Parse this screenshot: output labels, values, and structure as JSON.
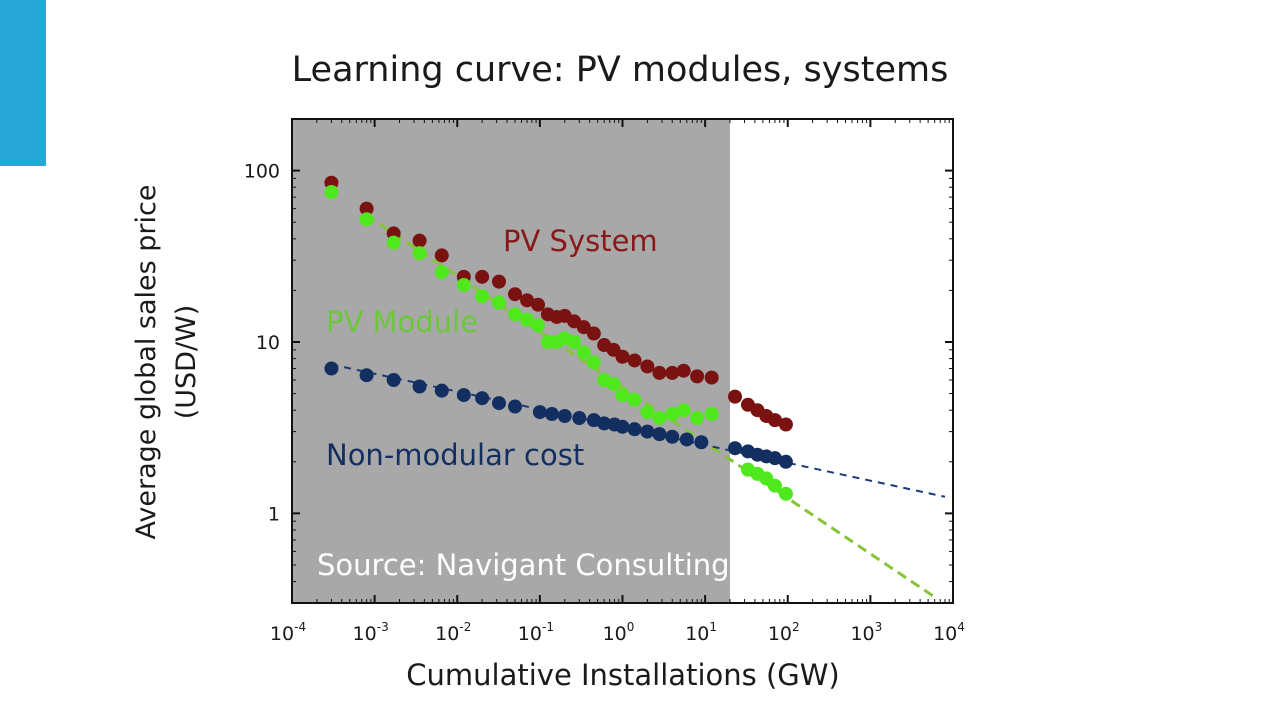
{
  "slide": {
    "title": "Learning curve: PV modules, systems",
    "accent_color": "#27a6d8"
  },
  "chart_data": {
    "type": "scatter",
    "title": "Learning curve: PV modules, systems",
    "xlabel": "Cumulative Installations (GW)",
    "ylabel": "Average global sales price",
    "ylabel_unit": "(USD/W)",
    "xscale": "log",
    "yscale": "log",
    "xlim": [
      0.0001,
      10000
    ],
    "ylim": [
      0.3,
      200
    ],
    "x_ticks": [
      {
        "base": "10",
        "exp": "-4"
      },
      {
        "base": "10",
        "exp": "-3"
      },
      {
        "base": "10",
        "exp": "-2"
      },
      {
        "base": "10",
        "exp": "-1"
      },
      {
        "base": "10",
        "exp": "0"
      },
      {
        "base": "10",
        "exp": "1"
      },
      {
        "base": "10",
        "exp": "2"
      },
      {
        "base": "10",
        "exp": "3"
      },
      {
        "base": "10",
        "exp": "4"
      }
    ],
    "y_ticks": [
      "1",
      "10",
      "100"
    ],
    "shaded_region": {
      "x": [
        0.0001,
        20
      ],
      "color": "#a8a8a8"
    },
    "annotations": {
      "source": "Source: Navigant Consulting"
    },
    "series": [
      {
        "name": "PV System",
        "color": "#7b1212",
        "x": [
          0.0003,
          0.0008,
          0.0017,
          0.0035,
          0.0065,
          0.012,
          0.02,
          0.032,
          0.05,
          0.07,
          0.095,
          0.125,
          0.16,
          0.2,
          0.26,
          0.34,
          0.45,
          0.6,
          0.78,
          1.0,
          1.4,
          2.0,
          2.8,
          4.0,
          5.5,
          8.0,
          12.0,
          23,
          33,
          43,
          55,
          70,
          95
        ],
        "y": [
          85,
          60,
          43,
          39,
          32,
          24,
          24,
          22.5,
          19,
          17.5,
          16.5,
          14.5,
          14,
          14.2,
          13.2,
          12.2,
          11.2,
          9.6,
          9.0,
          8.2,
          7.8,
          7.2,
          6.6,
          6.6,
          6.8,
          6.3,
          6.2,
          4.8,
          4.3,
          4.0,
          3.7,
          3.5,
          3.3
        ]
      },
      {
        "name": "PV Module",
        "color": "#4ee81c",
        "x": [
          0.0003,
          0.0008,
          0.0017,
          0.0035,
          0.0065,
          0.012,
          0.02,
          0.032,
          0.05,
          0.07,
          0.095,
          0.125,
          0.16,
          0.2,
          0.26,
          0.34,
          0.45,
          0.6,
          0.78,
          1.0,
          1.4,
          2.0,
          2.8,
          4.0,
          5.5,
          8.0,
          12.0,
          23,
          33,
          43,
          55,
          70,
          95
        ],
        "y": [
          75,
          52,
          38,
          33,
          25.5,
          21.5,
          18.5,
          17,
          14.5,
          13.5,
          12.5,
          10,
          10,
          10.5,
          10,
          8.7,
          7.6,
          6.0,
          5.7,
          4.9,
          4.6,
          3.9,
          3.6,
          3.8,
          4.0,
          3.6,
          3.8,
          2.4,
          1.8,
          1.7,
          1.6,
          1.45,
          1.3
        ]
      },
      {
        "name": "Non-modular cost",
        "color": "#132f62",
        "x": [
          0.0003,
          0.0008,
          0.0017,
          0.0035,
          0.0065,
          0.012,
          0.02,
          0.032,
          0.05,
          0.1,
          0.14,
          0.2,
          0.3,
          0.45,
          0.6,
          0.8,
          1.0,
          1.4,
          2.0,
          2.8,
          4.0,
          6.0,
          9.0,
          23,
          33,
          43,
          55,
          70,
          95
        ],
        "y": [
          7.0,
          6.4,
          6.0,
          5.5,
          5.2,
          4.9,
          4.7,
          4.4,
          4.2,
          3.9,
          3.8,
          3.7,
          3.6,
          3.5,
          3.35,
          3.3,
          3.2,
          3.1,
          3.0,
          2.9,
          2.8,
          2.7,
          2.6,
          2.4,
          2.3,
          2.2,
          2.15,
          2.1,
          2.0
        ]
      }
    ],
    "trend_lines": [
      {
        "series": "PV Module",
        "color": "#86c43a",
        "x": [
          0.0008,
          6300
        ],
        "y": [
          55,
          0.32
        ]
      },
      {
        "series": "Non-modular cost",
        "color": "#1c3a7a",
        "x": [
          0.0003,
          8000
        ],
        "y": [
          7.4,
          1.25
        ]
      }
    ]
  }
}
